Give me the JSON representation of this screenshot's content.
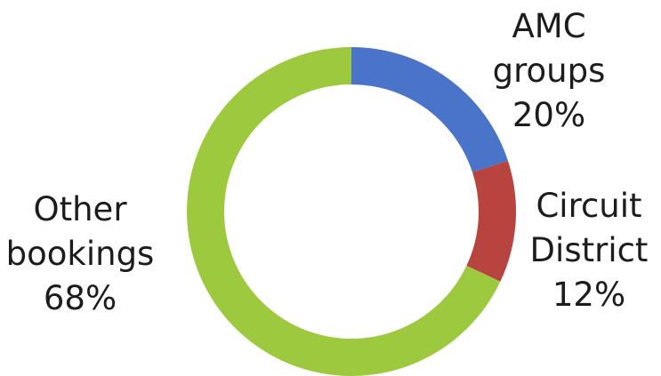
{
  "chart_data": {
    "type": "pie",
    "variant": "donut",
    "title": "",
    "slices": [
      {
        "name": "AMC groups",
        "value": 20,
        "label_lines": [
          "AMC",
          "groups"
        ],
        "pct_label": "20%",
        "color": "#4a74c9"
      },
      {
        "name": "Circuit District",
        "value": 12,
        "label_lines": [
          "Circuit",
          "District"
        ],
        "pct_label": "12%",
        "color": "#b8443f"
      },
      {
        "name": "Other bookings",
        "value": 68,
        "label_lines": [
          "Other",
          "bookings"
        ],
        "pct_label": "68%",
        "color": "#9dc93f"
      }
    ],
    "legend": "none",
    "start_angle": "12 o'clock",
    "direction": "clockwise"
  }
}
